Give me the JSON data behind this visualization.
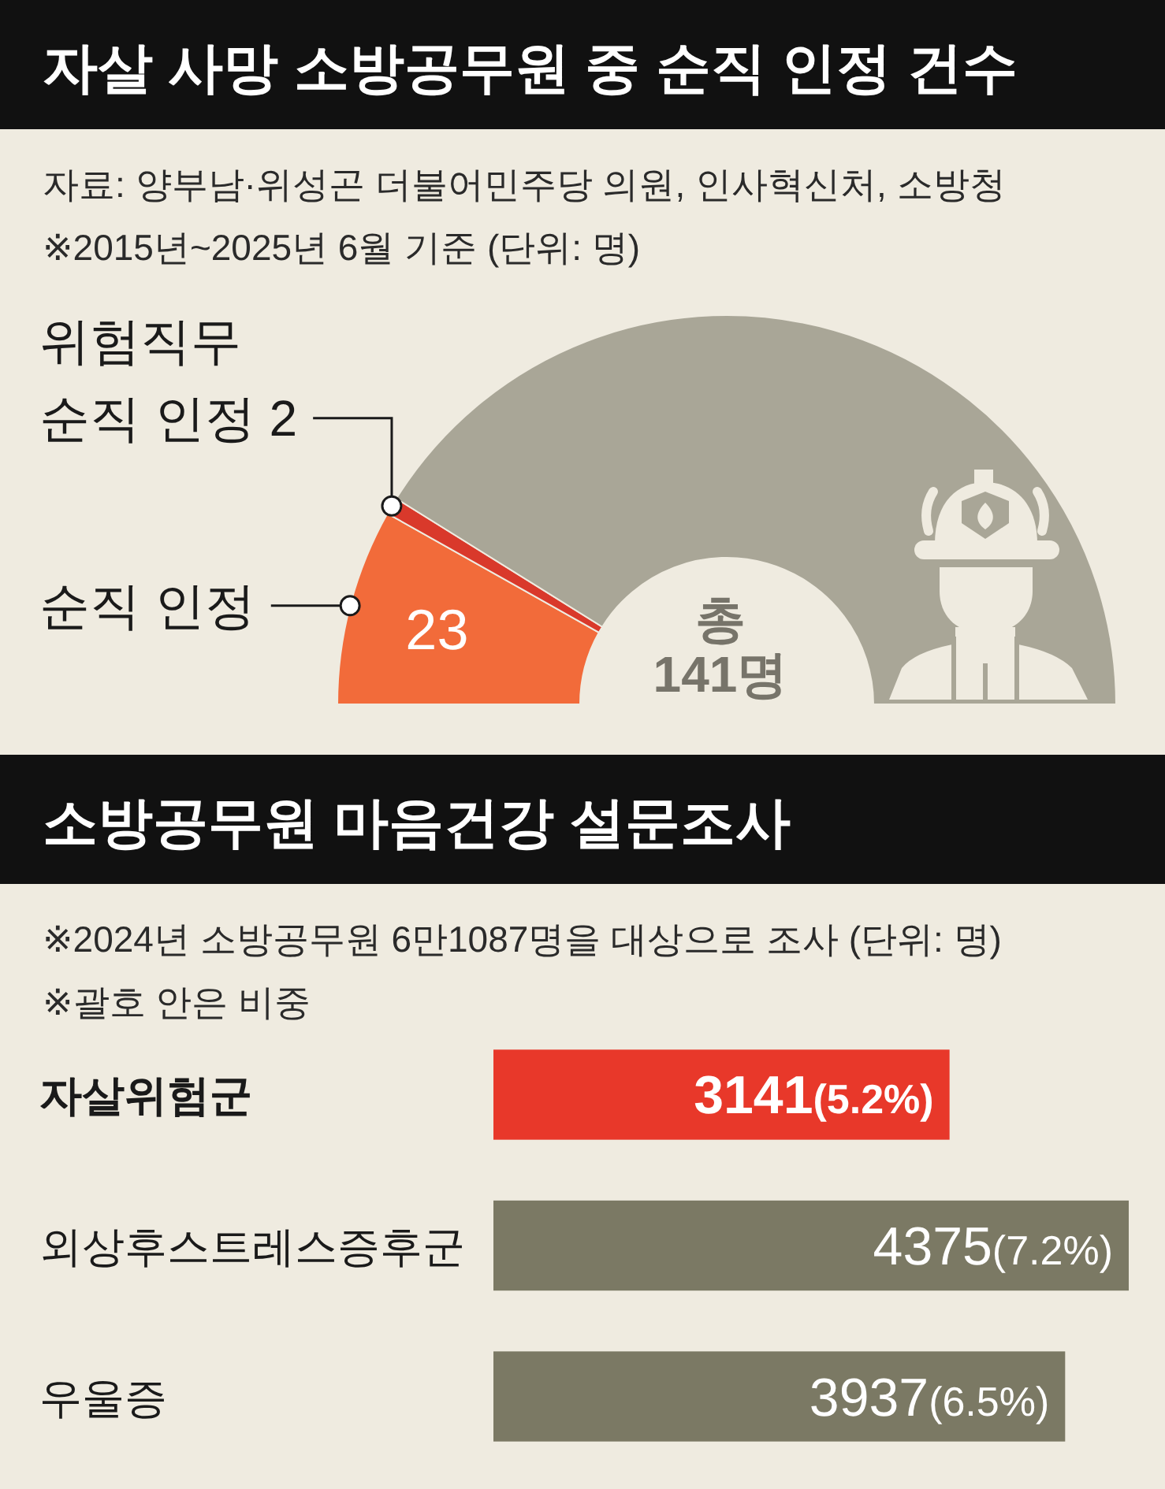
{
  "chart_data": [
    {
      "type": "donut",
      "title": "자살 사망 소방공무원 중 순직 인정 건수",
      "categories": [
        "순직 인정",
        "위험직무\n순직 인정",
        null
      ],
      "values": [
        23,
        2,
        116
      ],
      "colors": [
        "#f26b3a",
        "#d9392b",
        "#a9a697"
      ],
      "value_labels": [
        "23",
        "2",
        null
      ],
      "annotations": [
        "자료: 양부남·위성곤 더불어민주당 의원, 인사혁신처, 소방청",
        "※2015년~2025년 6월 기준 (단위: 명)",
        "총\n141명"
      ]
    },
    {
      "type": "bar",
      "orientation": "horizontal",
      "title": "소방공무원 마음건강 설문조사",
      "categories": [
        "자살위험군",
        "외상후스트레스증후군",
        "우울증"
      ],
      "values": [
        3141,
        4375,
        3937
      ],
      "colors": [
        "#e8382a",
        "#7b7964",
        "#7b7964"
      ],
      "value_labels": [
        "3141(5.2%)",
        "4375(7.2%)",
        "3937(6.5%)"
      ],
      "annotations": [
        "※2024년 소방공무원 6만1087명을 대상으로 조사 (단위: 명)",
        "※괄호 안은 비중"
      ]
    }
  ]
}
